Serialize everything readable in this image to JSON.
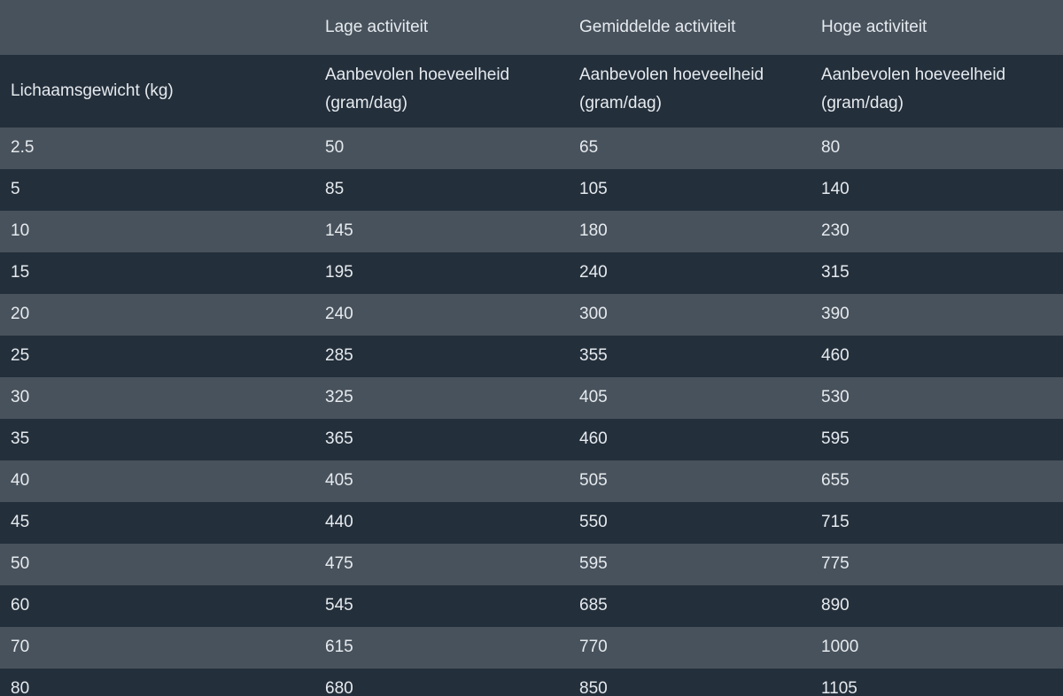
{
  "table": {
    "group_header": [
      "Lage activiteit",
      "Gemiddelde activiteit",
      "Hoge activiteit"
    ],
    "header": [
      "Lichaamsgewicht (kg)",
      "Aanbevolen hoeveelheid (gram/dag)",
      "Aanbevolen hoeveelheid (gram/dag)",
      "Aanbevolen hoeveelheid (gram/dag)"
    ],
    "rows": [
      [
        2.5,
        50,
        65,
        80
      ],
      [
        5,
        85,
        105,
        140
      ],
      [
        10,
        145,
        180,
        230
      ],
      [
        15,
        195,
        240,
        315
      ],
      [
        20,
        240,
        300,
        390
      ],
      [
        25,
        285,
        355,
        460
      ],
      [
        30,
        325,
        405,
        530
      ],
      [
        35,
        365,
        460,
        595
      ],
      [
        40,
        405,
        505,
        655
      ],
      [
        45,
        440,
        550,
        715
      ],
      [
        50,
        475,
        595,
        775
      ],
      [
        60,
        545,
        685,
        890
      ],
      [
        70,
        615,
        770,
        1000
      ],
      [
        80,
        680,
        850,
        1105
      ]
    ]
  }
}
